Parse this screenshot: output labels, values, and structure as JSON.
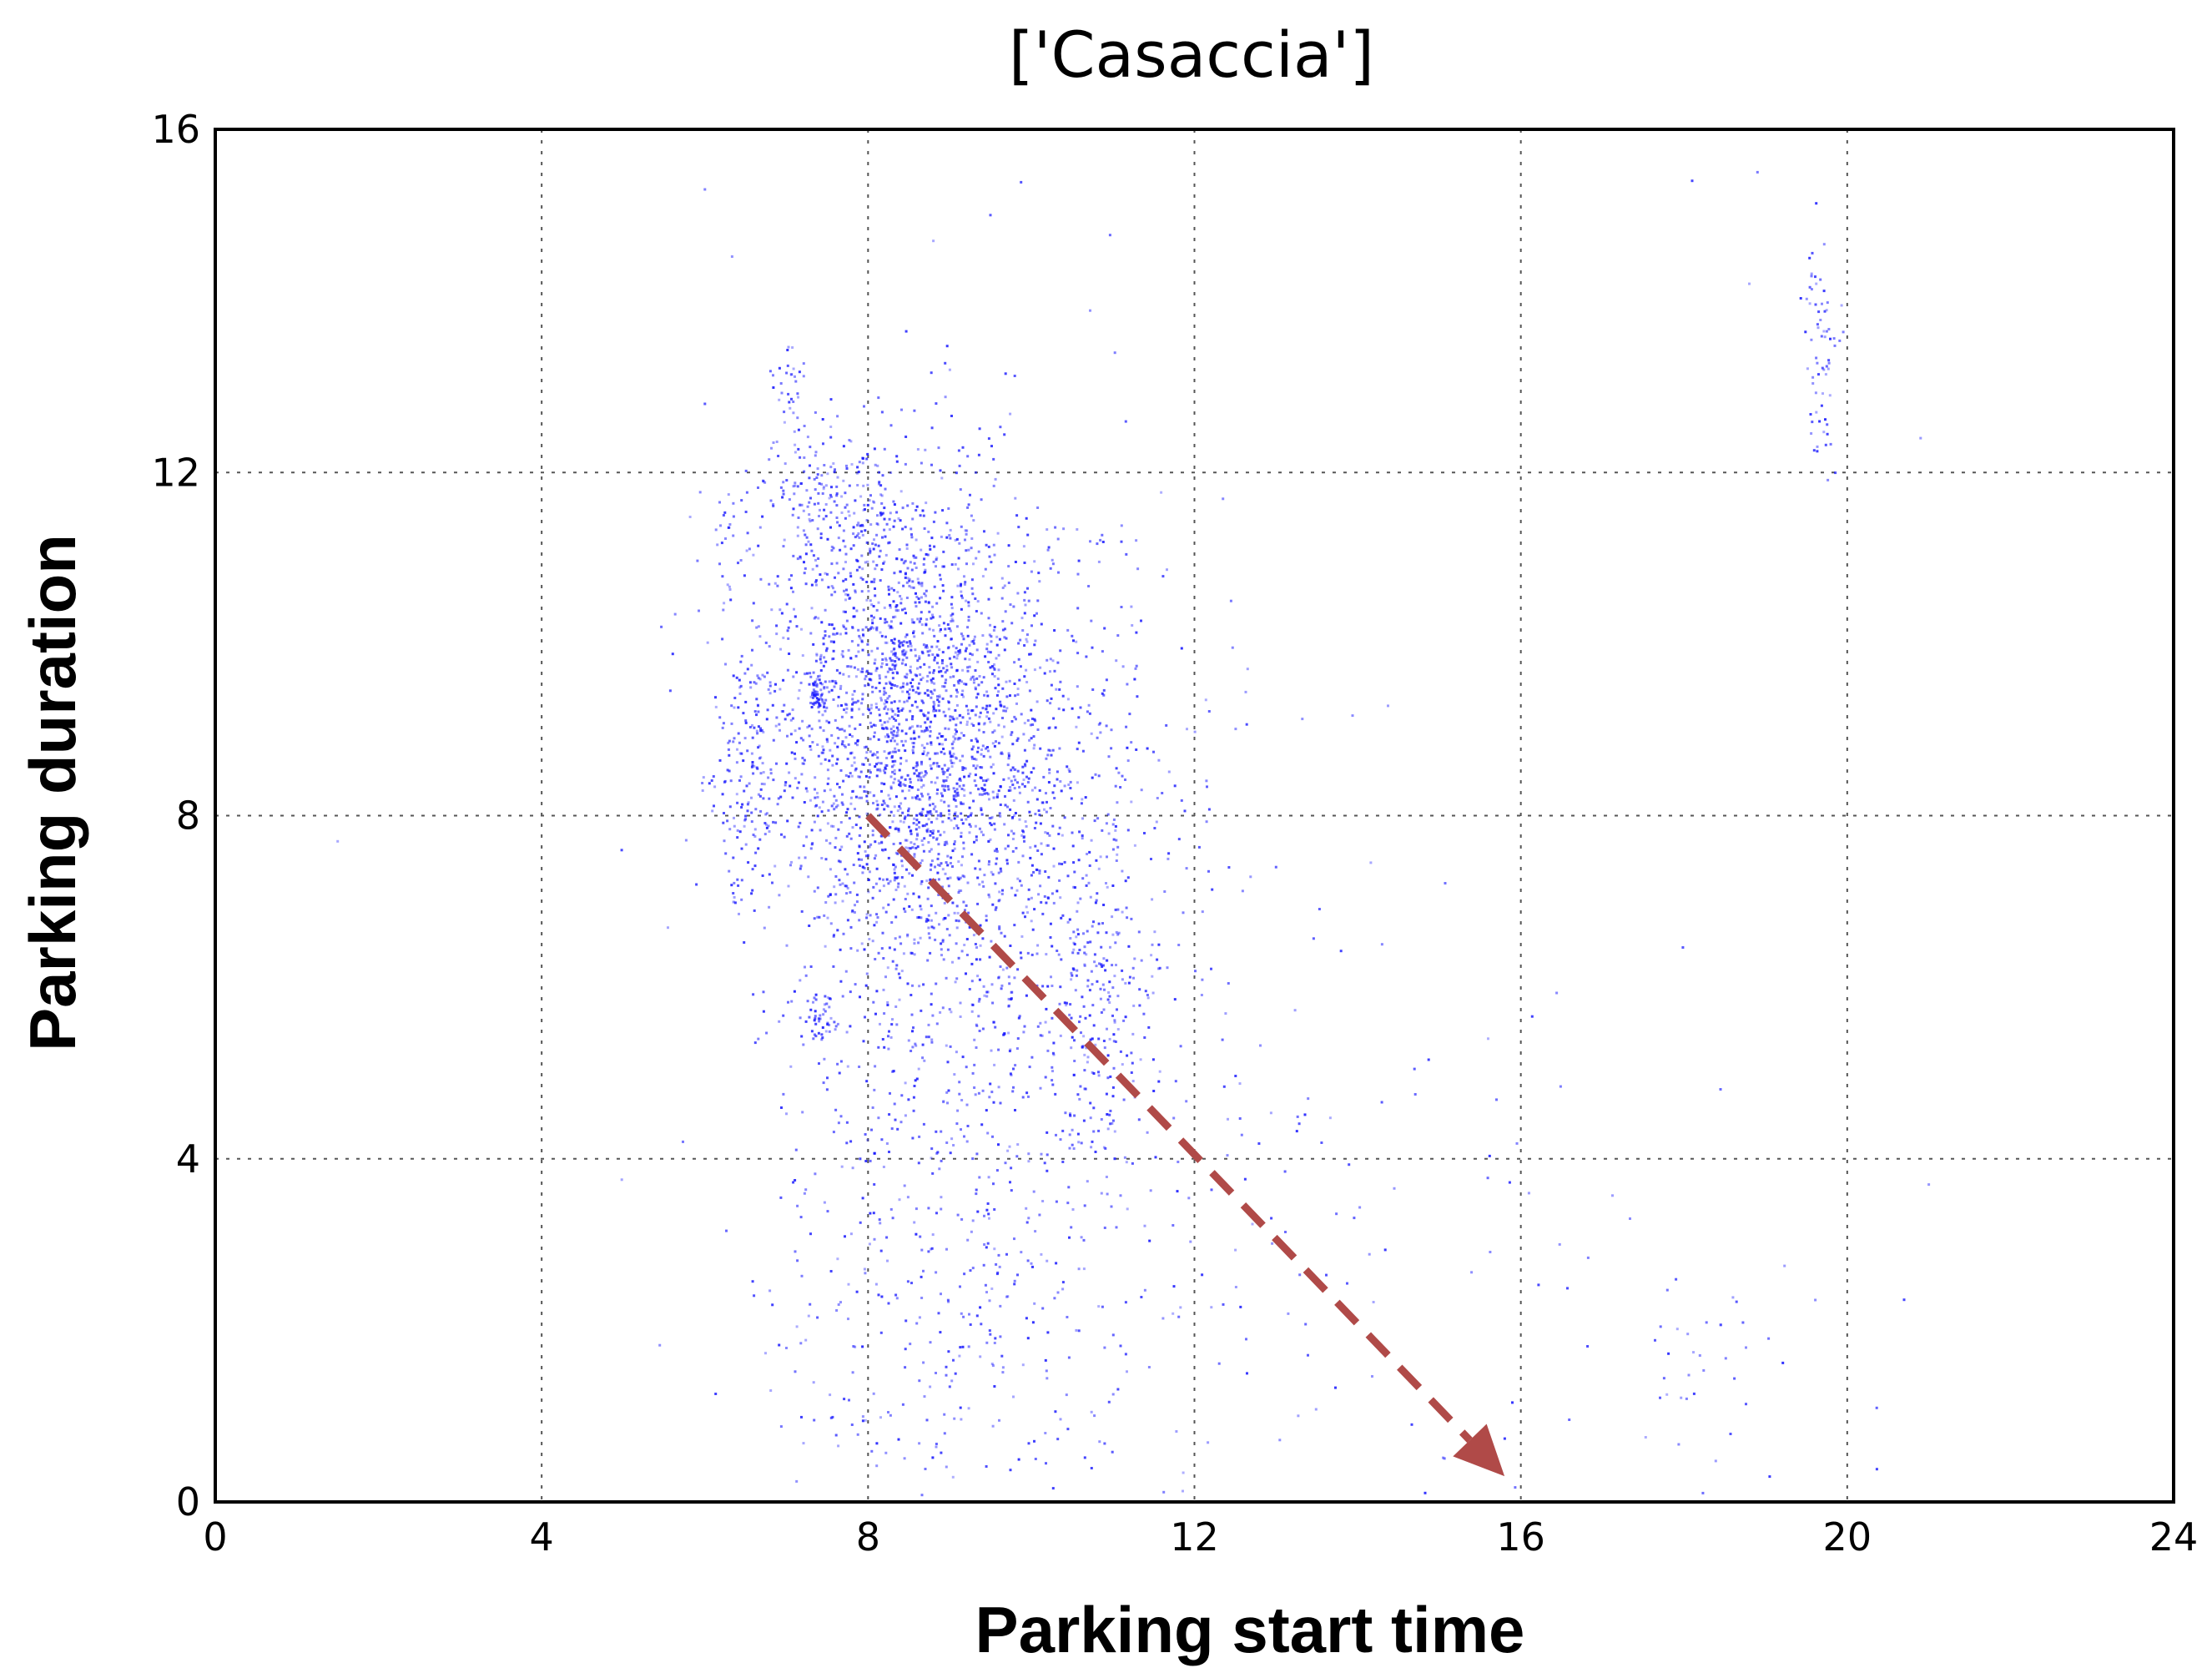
{
  "chart_data": {
    "type": "scatter",
    "title": "['Casaccia']",
    "xlabel": "Parking start time",
    "ylabel": "Parking duration",
    "xlim": [
      0,
      24
    ],
    "ylim": [
      0,
      16
    ],
    "xticks": [
      "0",
      "4",
      "8",
      "12",
      "16",
      "20",
      "24"
    ],
    "yticks": [
      "0",
      "4",
      "8",
      "12",
      "16"
    ],
    "grid": true,
    "point_color": "#1a1aff",
    "annotation": {
      "type": "arrow",
      "style": "dashed",
      "color": "#b04a48",
      "from": [
        8,
        8
      ],
      "to": [
        15.8,
        0.3
      ]
    },
    "clusters": [
      {
        "cx": 8.6,
        "cy": 8.7,
        "sx": 0.9,
        "sy": 1.3,
        "n": 1600
      },
      {
        "cx": 9.4,
        "cy": 7.5,
        "sx": 1.3,
        "sy": 2.2,
        "n": 1000
      },
      {
        "cx": 8.3,
        "cy": 10.3,
        "sx": 0.7,
        "sy": 1.0,
        "n": 450
      },
      {
        "cx": 7.6,
        "cy": 11.6,
        "sx": 0.4,
        "sy": 0.5,
        "n": 180
      },
      {
        "cx": 6.5,
        "cy": 8.5,
        "sx": 0.22,
        "sy": 0.7,
        "n": 160
      },
      {
        "cx": 6.3,
        "cy": 11.1,
        "sx": 0.2,
        "sy": 0.5,
        "n": 40
      },
      {
        "cx": 10.8,
        "cy": 6.0,
        "sx": 0.35,
        "sy": 1.1,
        "n": 220
      },
      {
        "cx": 7.0,
        "cy": 12.9,
        "sx": 0.12,
        "sy": 0.3,
        "n": 35
      },
      {
        "cx": 7.4,
        "cy": 9.4,
        "sx": 0.06,
        "sy": 0.12,
        "n": 60
      },
      {
        "cx": 7.4,
        "cy": 5.6,
        "sx": 0.08,
        "sy": 0.15,
        "n": 40
      },
      {
        "cx": 9.0,
        "cy": 3.2,
        "sx": 1.1,
        "sy": 1.3,
        "n": 260
      },
      {
        "cx": 8.7,
        "cy": 1.2,
        "sx": 1.3,
        "sy": 0.9,
        "n": 110
      },
      {
        "cx": 12.5,
        "cy": 4.2,
        "sx": 1.6,
        "sy": 2.0,
        "n": 90
      },
      {
        "cx": 15.5,
        "cy": 2.0,
        "sx": 2.2,
        "sy": 1.6,
        "n": 60
      },
      {
        "cx": 19.7,
        "cy": 13.4,
        "sx": 0.12,
        "sy": 0.7,
        "n": 70
      },
      {
        "cx": 18.3,
        "cy": 1.5,
        "sx": 0.5,
        "sy": 0.6,
        "n": 25
      }
    ],
    "outliers": [
      [
        1.5,
        7.7
      ],
      [
        6.0,
        15.3
      ],
      [
        9.5,
        15.0
      ],
      [
        8.8,
        14.7
      ],
      [
        6.0,
        12.8
      ],
      [
        18.1,
        15.4
      ],
      [
        18.9,
        15.5
      ],
      [
        18.8,
        14.2
      ],
      [
        20.9,
        12.4
      ],
      [
        21.0,
        3.7
      ],
      [
        14.3,
        6.5
      ],
      [
        13.0,
        7.4
      ],
      [
        15.6,
        5.4
      ],
      [
        16.1,
        3.6
      ]
    ]
  }
}
